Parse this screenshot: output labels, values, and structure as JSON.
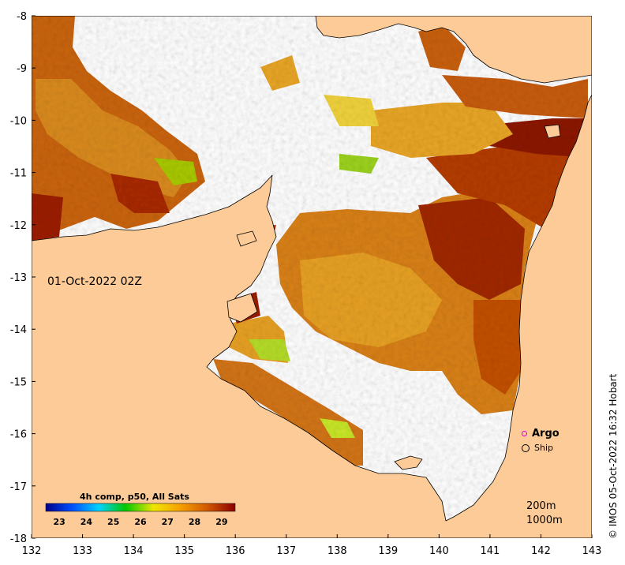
{
  "map": {
    "date_label": "01-Oct-2022 02Z",
    "credit": "© IMOS 05-Oct-2022 16:32 Hobart",
    "x_ticks": [
      "132",
      "133",
      "134",
      "135",
      "136",
      "137",
      "138",
      "139",
      "140",
      "141",
      "142",
      "143"
    ],
    "y_ticks": [
      "-8",
      "-9",
      "-10",
      "-11",
      "-12",
      "-13",
      "-14",
      "-15",
      "-16",
      "-17",
      "-18"
    ],
    "lon_range": [
      132,
      143
    ],
    "lat_range": [
      -18,
      -8
    ],
    "colors": {
      "land": "#fdcb97",
      "no_data": "#ffffff",
      "coast": "#000000"
    }
  },
  "legend": {
    "argo_label": "Argo",
    "ship_label": "Ship",
    "argo_color": "#e000e0",
    "depth_200": "200m",
    "depth_1000": "1000m"
  },
  "colorbar": {
    "title": "4h comp, p50, All Sats",
    "ticks": [
      "23",
      "24",
      "25",
      "26",
      "27",
      "28",
      "29"
    ],
    "range": [
      22.5,
      29.5
    ],
    "colors": [
      "#00008c",
      "#0050ff",
      "#00d2ff",
      "#00c800",
      "#f0e600",
      "#f5a000",
      "#d25a00",
      "#8c0000"
    ]
  }
}
